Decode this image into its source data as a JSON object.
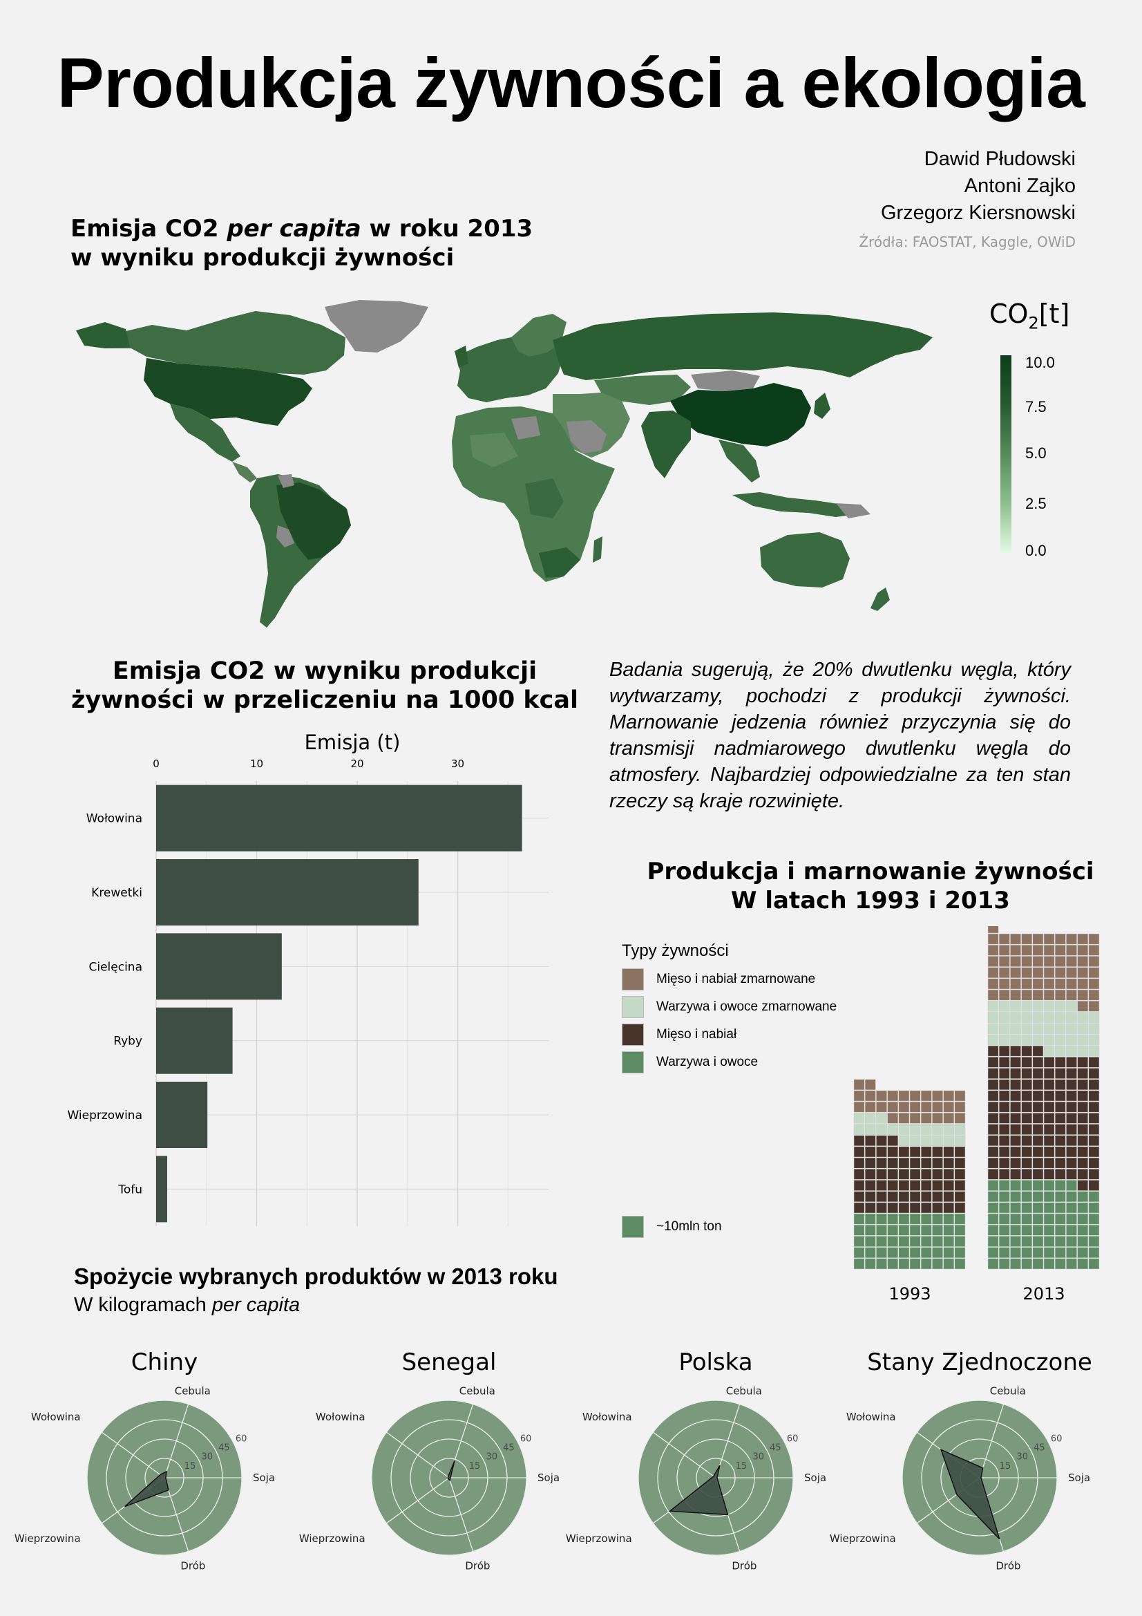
{
  "header": {
    "title": "Produkcja żywności a ekologia",
    "authors": [
      "Dawid Płudowski",
      "Antoni Zajko",
      "Grzegorz Kiersnowski"
    ],
    "sources": "Źródła: FAOSTAT, Kaggle, OWiD"
  },
  "map_section": {
    "title_part1": "Emisja CO2 ",
    "title_italic": "per capita",
    "title_part2": " w roku 2013",
    "title_line2": "w wyniku produkcji żywności",
    "legend_title_main": "CO",
    "legend_title_sub": "2",
    "legend_title_unit": "[t]",
    "legend_ticks": [
      "10.0",
      "7.5",
      "5.0",
      "2.5",
      "0.0"
    ],
    "colors": {
      "high": "#0c3d1b",
      "mid": "#3d6e42",
      "low": "#e3fae3",
      "na": "#8a8a8a"
    }
  },
  "paragraph": {
    "text": "Badania sugerują, że 20% dwutlenku węgla, który wytwarzamy, pochodzi z produkcji żywności. Marnowanie jedzenia również przyczynia się do transmisji nadmiarowego dwutlenku węgla do atmosfery. Najbardziej odpowiedzialne za ten stan",
    "last_line": "rzeczy są kraje rozwinięte."
  },
  "chart_data": [
    {
      "type": "bar",
      "orientation": "horizontal",
      "title": "Emisja CO2 w wyniku produkcji żywności w przeliczeniu na 1000 kcal",
      "title_line1": "Emisja CO2 w wyniku produkcji",
      "title_line2": "żywności w przeliczeniu na 1000 kcal",
      "xlabel": "Emisja (t)",
      "xlim": [
        0,
        39
      ],
      "xticks": [
        "0",
        "10",
        "20",
        "30"
      ],
      "categories": [
        "Wołowina",
        "Krewetki",
        "Cielęcina",
        "Ryby",
        "Wieprzowina",
        "Tofu"
      ],
      "values": [
        36.4,
        26.1,
        12.5,
        7.6,
        5.1,
        1.1
      ],
      "color": "#3e4e44"
    },
    {
      "type": "waffle",
      "title_line1": "Produkcja i marnowanie żywności",
      "title_line2": "W latach 1993 i 2013",
      "legend_title": "Typy żywności",
      "unit_label": "~10mln ton",
      "categories": [
        {
          "name": "Mięso i nabiał zmarnowane",
          "color": "#8b7261"
        },
        {
          "name": "Warzywa i owoce zmarnowane",
          "color": "#c5d9c7"
        },
        {
          "name": "Mięso i nabiał",
          "color": "#47342b"
        },
        {
          "name": "Warzywa i owoce",
          "color": "#5d8c64"
        }
      ],
      "series": [
        {
          "name": "1993",
          "columns": 10,
          "values": {
            "Warzywa i owoce": 50,
            "Mięso i nabiał": 64,
            "Warzywa i owoce zmarnowane": 19,
            "Mięso i nabiał zmarnowane": 29
          }
        },
        {
          "name": "2013",
          "columns": 10,
          "values": {
            "Warzywa i owoce": 78,
            "Mięso i nabiał": 117,
            "Warzywa i owoce zmarnowane": 43,
            "Mięso i nabiał zmarnowane": 63
          }
        }
      ]
    },
    {
      "type": "radar",
      "title": "Spożycie wybranych produktów w 2013 roku",
      "subtitle_part1": "W kilogramach ",
      "subtitle_italic": "per capita",
      "axes": [
        "Cebula",
        "Soja",
        "Drób",
        "Wieprzowina",
        "Wołowina"
      ],
      "rlim": [
        0,
        60
      ],
      "rticks": [
        "15",
        "30",
        "45",
        "60"
      ],
      "fill_color": "#3e4e44",
      "background_color": "#7a997d",
      "series": [
        {
          "name": "Chiny",
          "values": [
            5,
            1,
            10,
            38,
            4
          ]
        },
        {
          "name": "Senegal",
          "values": [
            14,
            1,
            2,
            1,
            1
          ]
        },
        {
          "name": "Polska",
          "values": [
            10,
            1,
            30,
            44,
            2
          ]
        },
        {
          "name": "Stany Zjednoczone",
          "values": [
            8,
            1,
            50,
            22,
            37
          ]
        }
      ]
    }
  ]
}
